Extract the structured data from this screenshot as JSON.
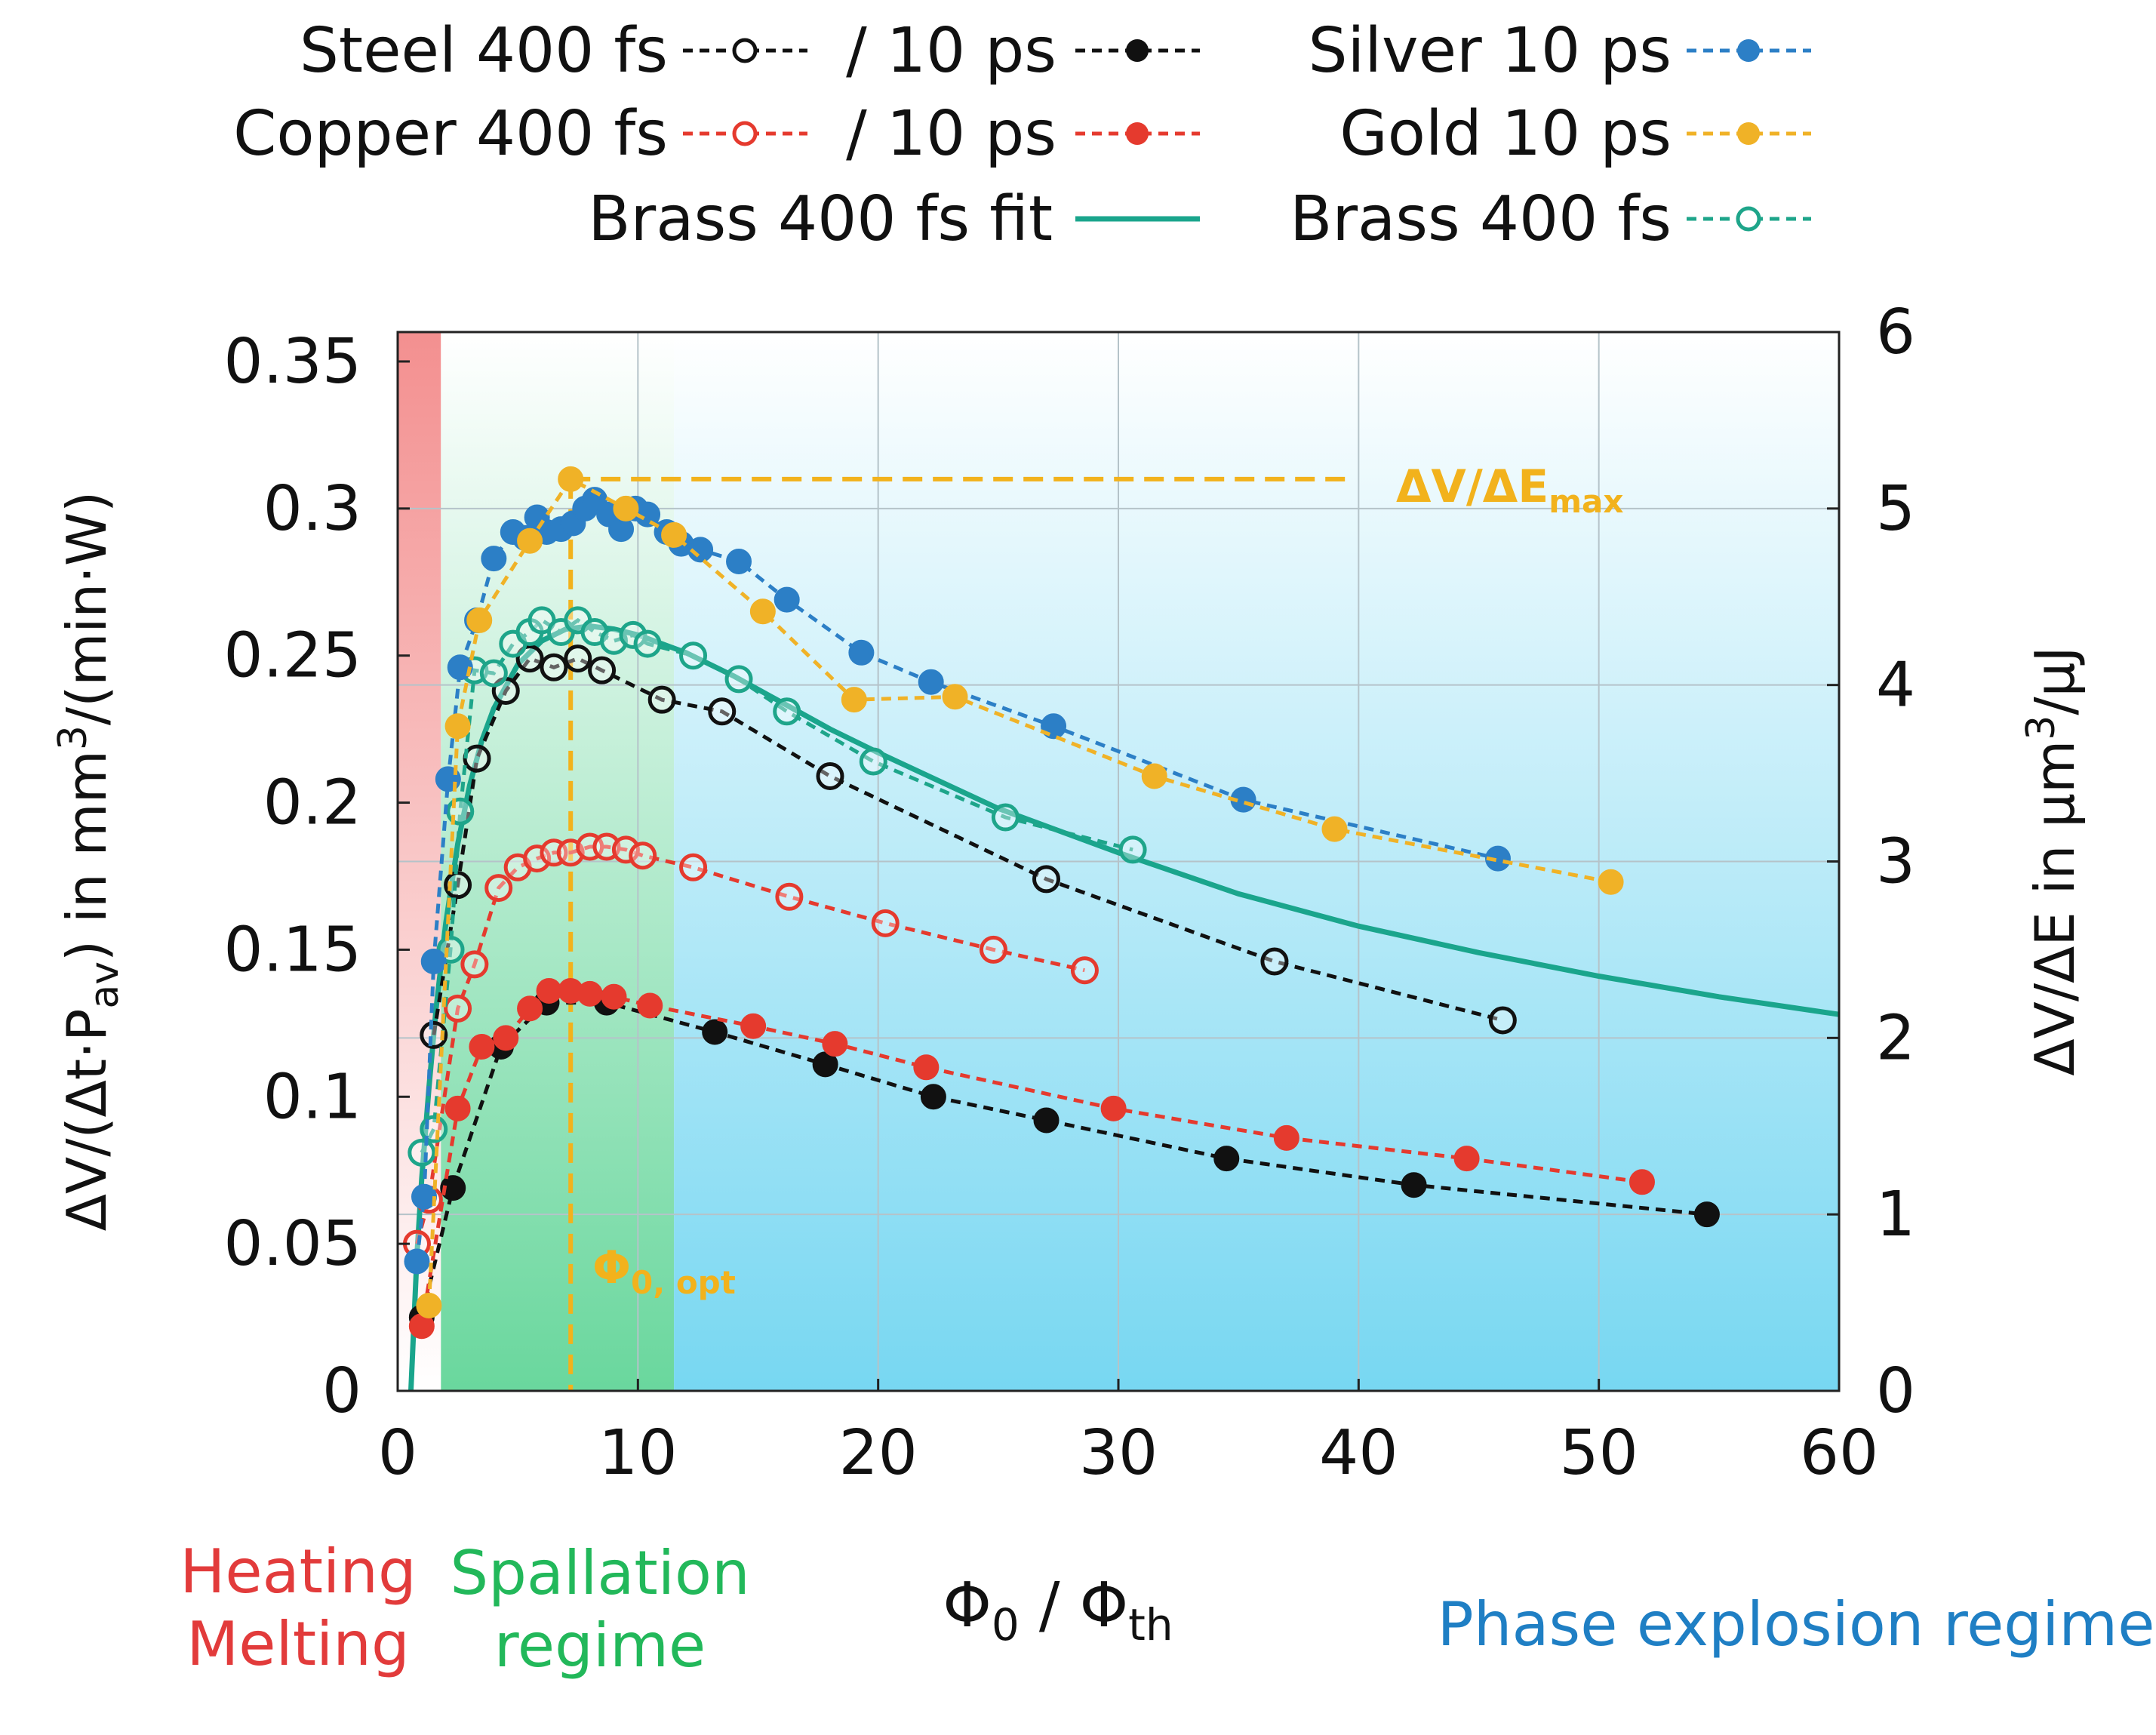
{
  "chart_data": {
    "type": "line",
    "xlabel": {
      "main": "Φ",
      "sub0": "0",
      "slash": " / Φ",
      "sub1": "th"
    },
    "ylabel_left": {
      "p1": "ΔV/(Δt·P",
      "sub": "av",
      "p2": ") in mm",
      "sup": "3",
      "p3": "/(min·W)"
    },
    "ylabel_right": {
      "p1": "ΔV/ΔE in µm",
      "sup": "3",
      "p2": "/µJ"
    },
    "xlim": [
      0,
      60
    ],
    "ylim_left": [
      0,
      0.36
    ],
    "ylim_right": [
      0,
      6
    ],
    "x_ticks": [
      "0",
      "10",
      "20",
      "30",
      "40",
      "50",
      "60"
    ],
    "y_ticks_left": [
      "0",
      "0.05",
      "0.1",
      "0.15",
      "0.2",
      "0.25",
      "0.3",
      "0.35"
    ],
    "y_ticks_right": [
      "0",
      "1",
      "2",
      "3",
      "4",
      "5",
      "6"
    ],
    "regions": [
      {
        "from": 0,
        "to": 1.8,
        "color": "#f08080",
        "label_lines": [
          "Heating",
          "Melting"
        ],
        "text_color": "#e23b3b"
      },
      {
        "from": 1.8,
        "to": 11.5,
        "color": "#5bd39a",
        "label_lines": [
          "Spallation",
          "regime"
        ],
        "text_color": "#22b85a"
      },
      {
        "from": 11.5,
        "to": 60,
        "color": "#5fd2ef",
        "label_lines": [
          "Phase explosion regime"
        ],
        "text_color": "#1f7fc4"
      }
    ],
    "annotations": {
      "max": {
        "p1": "ΔV/ΔE",
        "sub": "max",
        "x": 7.2,
        "y": 0.31,
        "color": "#f2b21c"
      },
      "opt": {
        "p1": "Φ",
        "sub": "0, opt",
        "color": "#f2b21c"
      }
    },
    "legend": [
      {
        "label": "Steel 400 fs",
        "series": "steel_400fs"
      },
      {
        "label": "/ 10 ps",
        "series": "steel_10ps"
      },
      {
        "label": "Silver 10 ps",
        "series": "silver_10ps"
      },
      {
        "label": "Copper 400 fs",
        "series": "copper_400fs"
      },
      {
        "label": "/ 10 ps",
        "series": "copper_10ps"
      },
      {
        "label": "Gold 10 ps",
        "series": "gold_10ps"
      },
      {
        "label": "Brass 400 fs fit",
        "series": "brass_fit"
      },
      {
        "label": "Brass 400 fs",
        "series": "brass_400fs"
      }
    ],
    "series": [
      {
        "id": "steel_400fs",
        "color": "#111111",
        "marker": "open",
        "dashed": true,
        "x": [
          1.5,
          2.5,
          3.3,
          4.5,
          5.5,
          6.5,
          7.5,
          8.5,
          11,
          13.5,
          18,
          27,
          36.5,
          46
        ],
        "y": [
          0.121,
          0.172,
          0.215,
          0.238,
          0.249,
          0.246,
          0.249,
          0.245,
          0.235,
          0.231,
          0.209,
          0.174,
          0.146,
          0.126
        ]
      },
      {
        "id": "steel_10ps",
        "color": "#111111",
        "marker": "filled",
        "dashed": true,
        "x": [
          1.0,
          2.3,
          4.3,
          6.2,
          8.7,
          13.2,
          17.8,
          22.3,
          27,
          34.5,
          42.3,
          54.5
        ],
        "y": [
          0.025,
          0.069,
          0.117,
          0.132,
          0.132,
          0.122,
          0.111,
          0.1,
          0.092,
          0.079,
          0.07,
          0.06
        ]
      },
      {
        "id": "silver_10ps",
        "color": "#2c7fc6",
        "marker": "filled",
        "dashed": true,
        "x": [
          0.8,
          1.1,
          1.5,
          2.1,
          2.6,
          3.3,
          4.0,
          4.8,
          5.3,
          5.8,
          6.2,
          6.8,
          7.3,
          7.8,
          8.2,
          8.8,
          9.3,
          9.9,
          10.4,
          11.2,
          11.8,
          12.6,
          14.2,
          16.2,
          19.3,
          22.2,
          27.3,
          35.2,
          45.8
        ],
        "y": [
          0.044,
          0.066,
          0.146,
          0.208,
          0.246,
          0.262,
          0.283,
          0.292,
          0.29,
          0.297,
          0.292,
          0.293,
          0.295,
          0.3,
          0.303,
          0.298,
          0.293,
          0.3,
          0.298,
          0.292,
          0.288,
          0.286,
          0.282,
          0.269,
          0.251,
          0.241,
          0.226,
          0.201,
          0.181
        ]
      },
      {
        "id": "gold_10ps",
        "color": "#f0b227",
        "marker": "filled",
        "dashed": true,
        "x": [
          1.3,
          2.5,
          3.4,
          5.5,
          7.2,
          9.5,
          11.5,
          15.2,
          19.0,
          23.2,
          31.5,
          39.0,
          50.5
        ],
        "y": [
          0.029,
          0.226,
          0.262,
          0.289,
          0.31,
          0.3,
          0.291,
          0.265,
          0.235,
          0.236,
          0.209,
          0.191,
          0.173
        ]
      },
      {
        "id": "copper_400fs",
        "color": "#e53a2e",
        "marker": "open",
        "dashed": true,
        "x": [
          0.8,
          1.3,
          2.5,
          3.2,
          4.2,
          5.0,
          5.8,
          6.5,
          7.2,
          8.0,
          8.7,
          9.5,
          10.2,
          12.3,
          16.3,
          20.3,
          24.8,
          28.6
        ],
        "y": [
          0.05,
          0.065,
          0.13,
          0.145,
          0.171,
          0.178,
          0.181,
          0.183,
          0.183,
          0.185,
          0.185,
          0.184,
          0.182,
          0.178,
          0.168,
          0.159,
          0.15,
          0.143
        ]
      },
      {
        "id": "copper_10ps",
        "color": "#e53a2e",
        "marker": "filled",
        "dashed": true,
        "x": [
          1.0,
          2.5,
          3.5,
          4.5,
          5.5,
          6.3,
          7.2,
          8.0,
          9.0,
          10.5,
          14.8,
          18.2,
          22.0,
          29.8,
          37.0,
          44.5,
          51.8
        ],
        "y": [
          0.022,
          0.096,
          0.117,
          0.12,
          0.13,
          0.136,
          0.136,
          0.135,
          0.134,
          0.131,
          0.124,
          0.118,
          0.11,
          0.096,
          0.086,
          0.079,
          0.071
        ]
      },
      {
        "id": "brass_400fs",
        "color": "#1ea58a",
        "marker": "open",
        "dashed": true,
        "x": [
          1.0,
          1.5,
          2.2,
          2.6,
          3.2,
          4.0,
          4.8,
          5.5,
          6.0,
          6.8,
          7.5,
          8.2,
          9.0,
          9.8,
          10.4,
          12.3,
          14.2,
          16.2,
          19.8,
          25.3,
          30.6
        ],
        "y": [
          0.081,
          0.089,
          0.15,
          0.197,
          0.245,
          0.244,
          0.254,
          0.258,
          0.262,
          0.258,
          0.262,
          0.258,
          0.255,
          0.257,
          0.254,
          0.25,
          0.242,
          0.231,
          0.214,
          0.195,
          0.184
        ]
      },
      {
        "id": "brass_fit",
        "color": "#1aa58c",
        "marker": "none",
        "dashed": false,
        "x": [
          0.55,
          0.8,
          1.0,
          1.3,
          1.6,
          2.0,
          2.5,
          3.0,
          3.5,
          4.0,
          5.0,
          6.0,
          7.0,
          8.0,
          9.0,
          10.0,
          12.0,
          14.0,
          16.0,
          18.0,
          20.0,
          25.0,
          30.0,
          35.0,
          40.0,
          45.0,
          50.0,
          55.0,
          60.0
        ],
        "y": [
          0.0,
          0.046,
          0.072,
          0.103,
          0.13,
          0.159,
          0.186,
          0.206,
          0.221,
          0.232,
          0.247,
          0.255,
          0.259,
          0.26,
          0.259,
          0.257,
          0.251,
          0.243,
          0.234,
          0.225,
          0.217,
          0.198,
          0.183,
          0.169,
          0.158,
          0.149,
          0.141,
          0.134,
          0.128
        ]
      }
    ]
  }
}
